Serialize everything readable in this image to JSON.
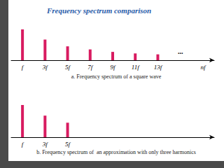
{
  "title": "Frequency spectrum comparison",
  "chart_data": [
    {
      "type": "bar",
      "title": "a. Frequency spectrum of a square wave",
      "categories": [
        "f",
        "3f",
        "5f",
        "7f",
        "9f",
        "11f",
        "13f",
        null,
        "nf"
      ],
      "values": [
        1,
        0.67,
        0.45,
        0.35,
        0.27,
        0.22,
        0.19,
        null,
        null
      ],
      "color": "#d81b60",
      "ylim": [
        0,
        1
      ],
      "tick_labels": "x",
      "annotation": "..."
    },
    {
      "type": "bar",
      "title": "b. Frequency spectrum of  an approximation with only three harmonics",
      "categories": [
        "f",
        "3f",
        "5f",
        null,
        null,
        null,
        null,
        null,
        null
      ],
      "values": [
        1,
        0.67,
        0.45,
        null,
        null,
        null,
        null,
        null,
        null
      ],
      "color": "#d81b60",
      "ylim": [
        0,
        1
      ],
      "tick_labels": "x"
    }
  ]
}
